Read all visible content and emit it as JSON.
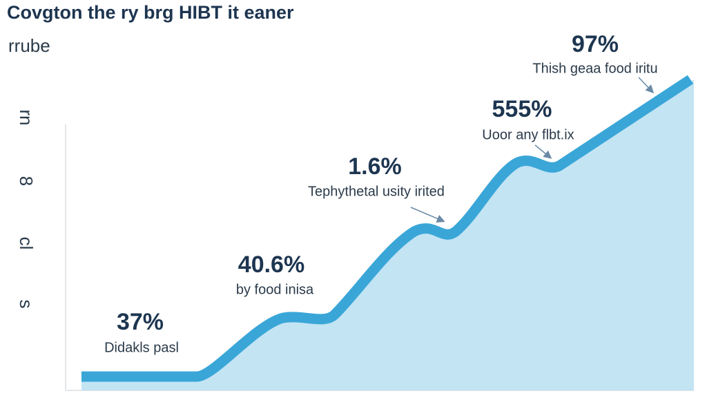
{
  "chart_data": {
    "type": "area",
    "title": "Covgton the ry brg HIBT it eaner",
    "subtitle": "rrube",
    "axis_labels": [
      "rn",
      "8",
      "cl",
      "s"
    ],
    "annotations": [
      {
        "label": "37%",
        "text": "Didakls pasl"
      },
      {
        "label": "40.6%",
        "text": "by food inisa"
      },
      {
        "label": "1.6%",
        "text": "Tephythetal usity irited"
      },
      {
        "label": "555%",
        "text": "Uoor any flbt.ix"
      },
      {
        "label": "97%",
        "text": "Thish geaa food iritu"
      }
    ],
    "color": "#3aa6d8"
  }
}
